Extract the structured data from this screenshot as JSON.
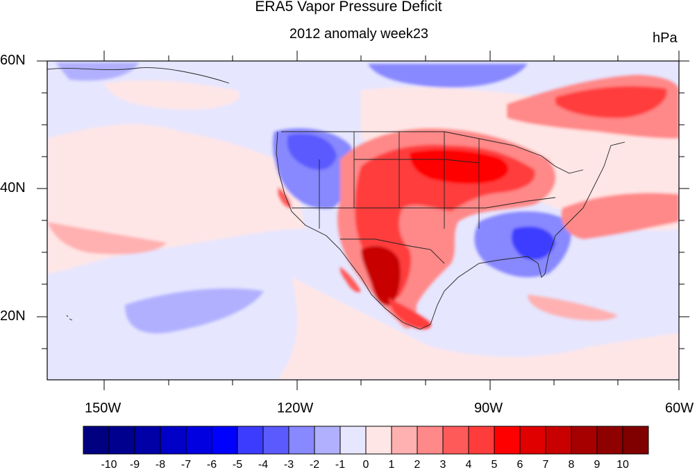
{
  "title": "ERA5 Vapor Pressure Deficit",
  "subtitle": "2012 anomaly week23",
  "units": "hPa",
  "lat_labels": [
    "60N",
    "40N",
    "20N"
  ],
  "lon_labels": [
    "150W",
    "120W",
    "90W",
    "60W"
  ],
  "colorbar": {
    "labels": [
      "-10",
      "-9",
      "-8",
      "-7",
      "-6",
      "-5",
      "-4",
      "-3",
      "-2",
      "-1",
      "0",
      "1",
      "2",
      "3",
      "4",
      "5",
      "6",
      "7",
      "8",
      "9",
      "10"
    ],
    "colors": [
      "#000080",
      "#00008f",
      "#0000a6",
      "#0000c8",
      "#0000e0",
      "#0000ff",
      "#3c3cff",
      "#5a5aff",
      "#8888ff",
      "#b0b0ff",
      "#e6e6ff",
      "#ffe6e6",
      "#ffb0b0",
      "#ff8888",
      "#ff5a5a",
      "#ff3c3c",
      "#ff0000",
      "#e00000",
      "#c80000",
      "#a60000",
      "#8f0000",
      "#800000"
    ]
  },
  "map_colors": {
    "background": "#e6e6ff",
    "weak_positive": "#ffe6e6",
    "positive_2": "#ffb0b0",
    "positive_3": "#ff8888",
    "positive_4": "#ff5a5a",
    "positive_5": "#ff3c3c",
    "positive_6": "#ff0000",
    "positive_8": "#c80000",
    "negative_2": "#b0b0ff",
    "negative_3": "#8888ff",
    "negative_4": "#5a5aff",
    "negative_5": "#3c3cff"
  }
}
